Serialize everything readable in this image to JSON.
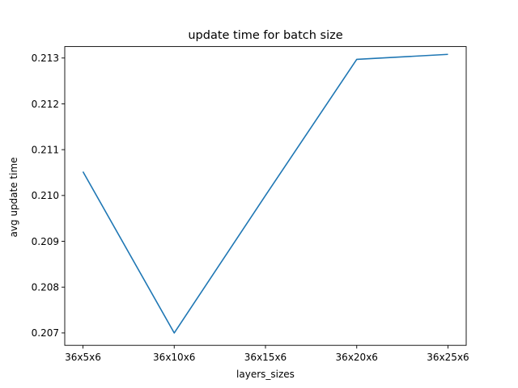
{
  "chart_data": {
    "type": "line",
    "title": "update time for batch size",
    "xlabel": "layers_sizes",
    "ylabel": "avg update time",
    "categories": [
      "36x5x6",
      "36x10x6",
      "36x15x6",
      "36x20x6",
      "36x25x6"
    ],
    "values": [
      0.21052,
      0.207,
      0.21,
      0.21297,
      0.21308
    ],
    "yticks": [
      "0.207",
      "0.208",
      "0.209",
      "0.210",
      "0.211",
      "0.212",
      "0.213"
    ],
    "ylim": [
      0.20673,
      0.21325
    ],
    "grid": false,
    "line_color": "#1f77b4"
  }
}
